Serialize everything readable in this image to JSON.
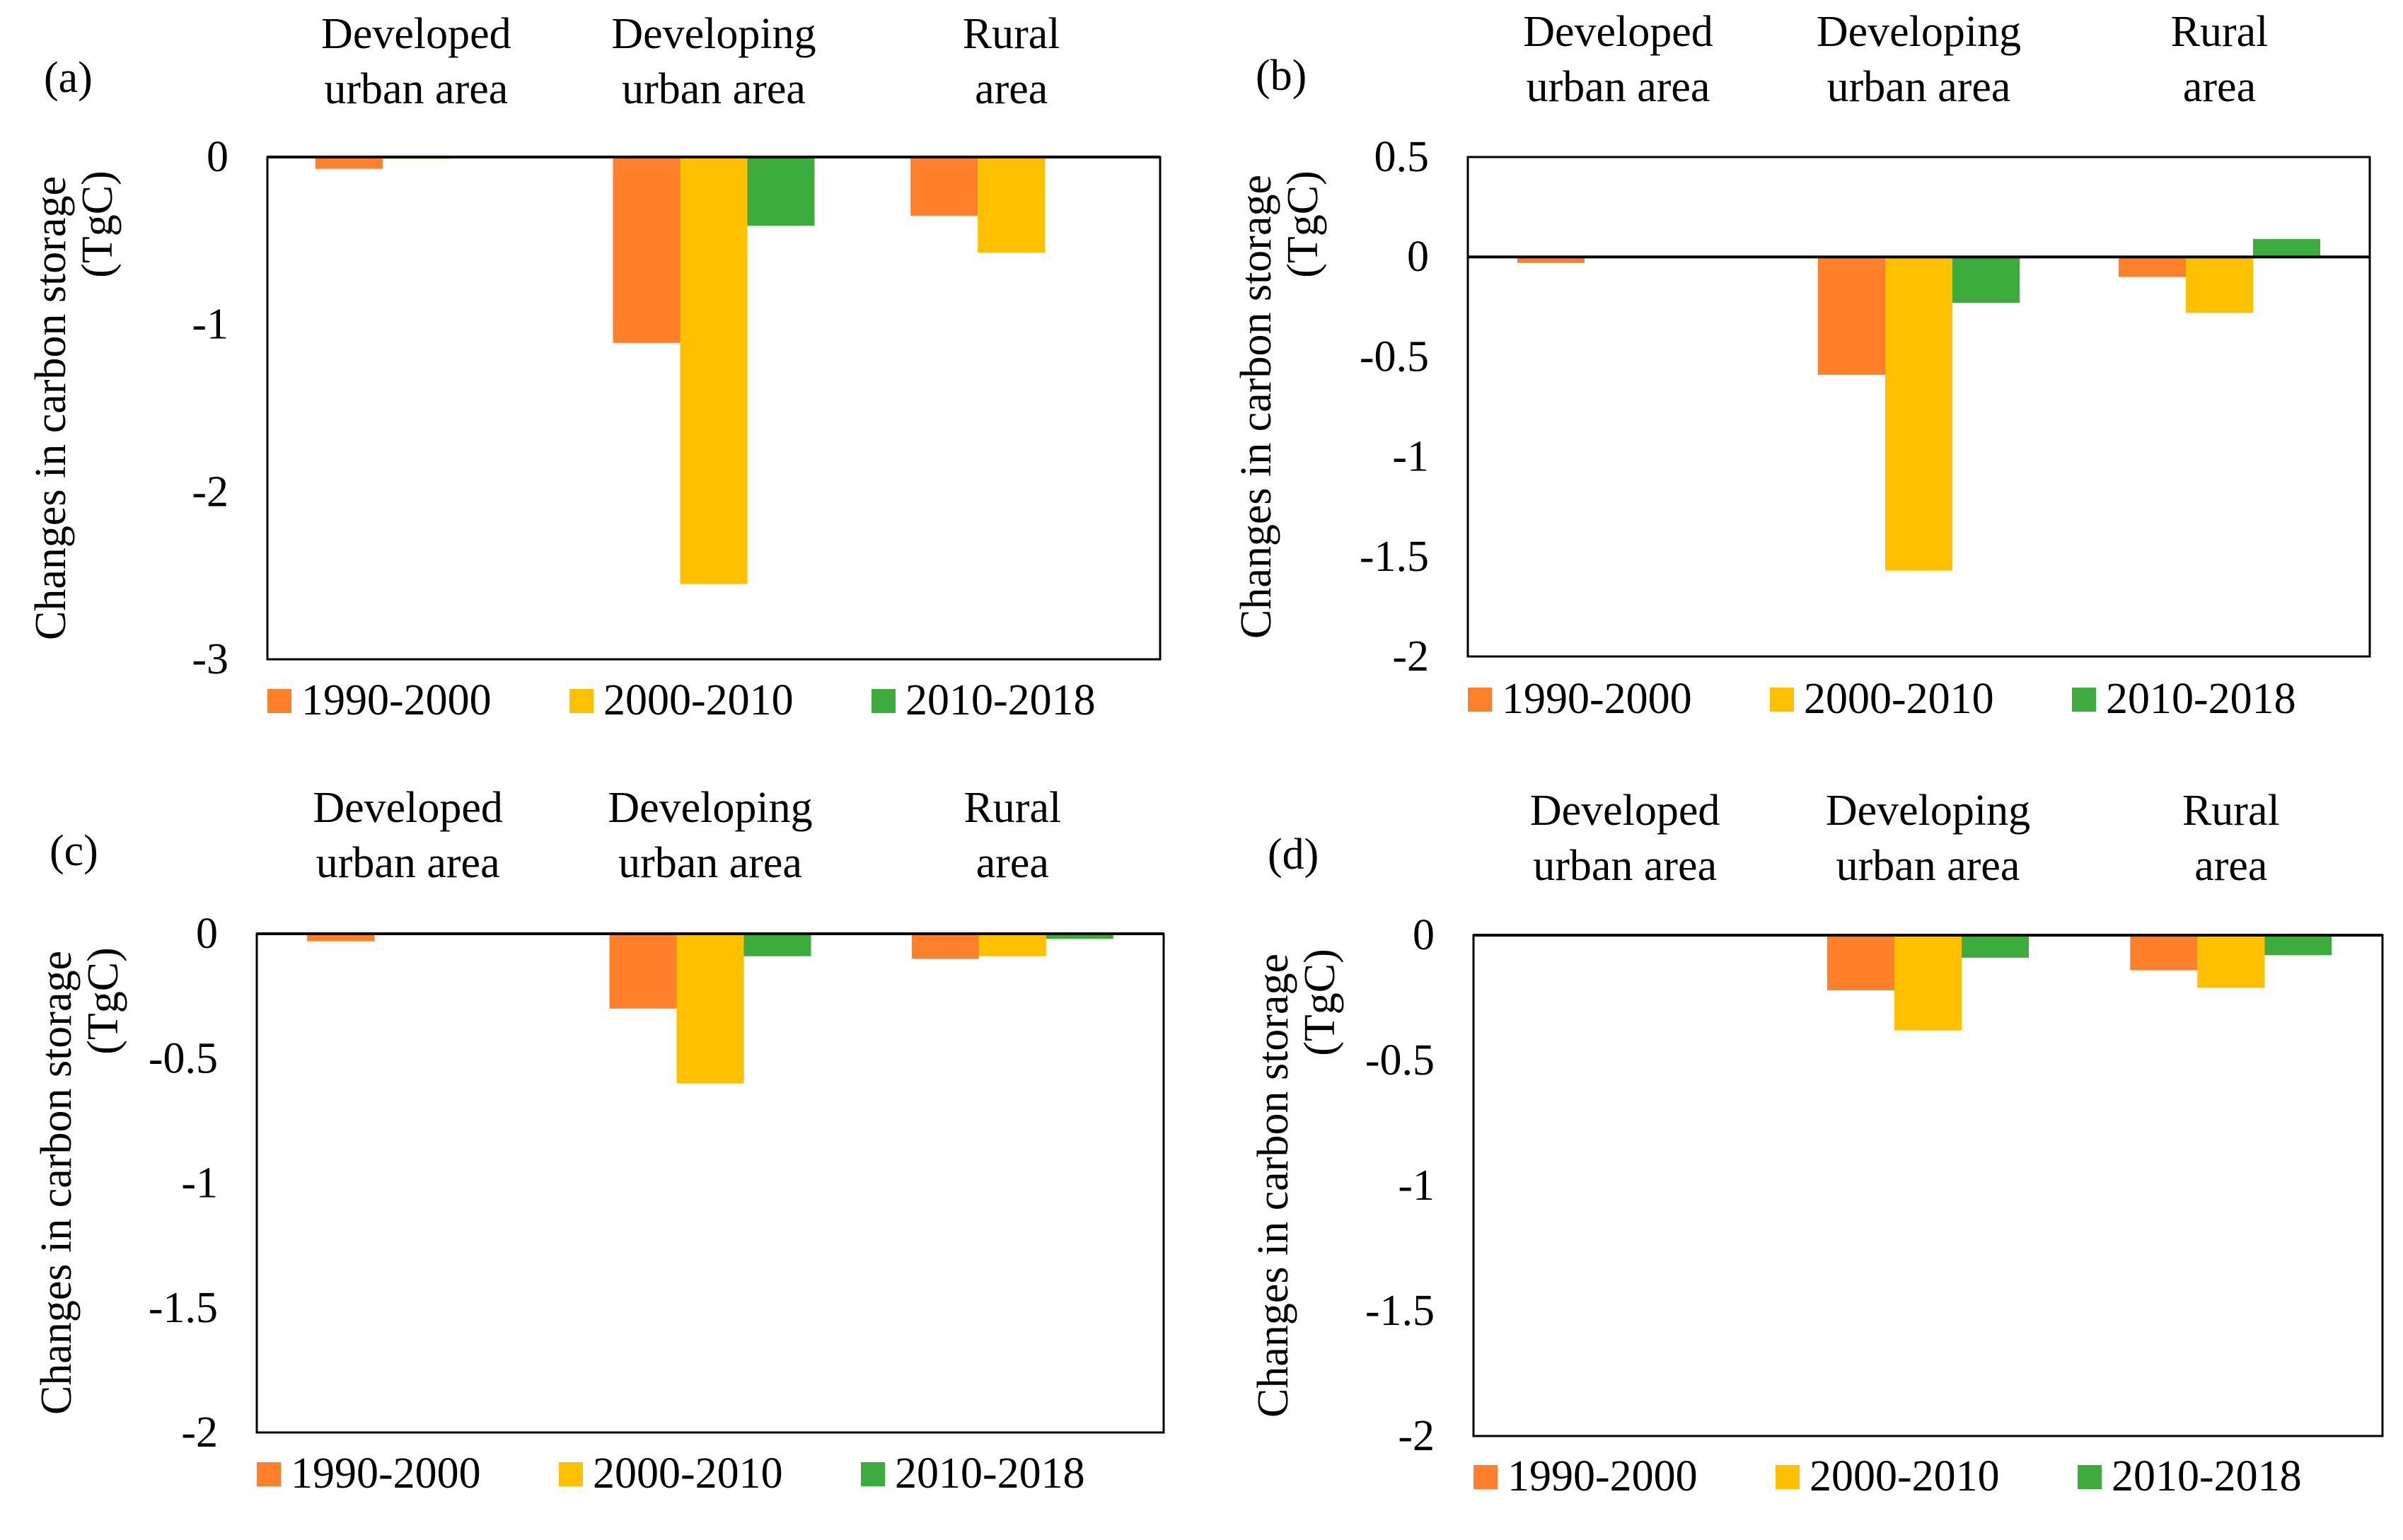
{
  "colors": {
    "1990-2000": "#FF7F2A",
    "2000-2010": "#FFC000",
    "2010-2018": "#3CAC3C",
    "axis": "#000000"
  },
  "chart_data": [
    {
      "panel": "(a)",
      "type": "bar",
      "categories": [
        "Developed urban area",
        "Developing urban area",
        "Rural area"
      ],
      "category_lines": [
        [
          "Developed",
          "urban area"
        ],
        [
          "Developing",
          "urban area"
        ],
        [
          "Rural",
          "area"
        ]
      ],
      "series": [
        {
          "name": "1990-2000",
          "values": [
            -0.07,
            -1.11,
            -0.35
          ]
        },
        {
          "name": "2000-2010",
          "values": [
            -0.01,
            -2.55,
            -0.57
          ]
        },
        {
          "name": "2010-2018",
          "values": [
            0.0,
            -0.41,
            0.0
          ]
        }
      ],
      "ylabel": [
        "Changes in carbon storage",
        "(TgC)"
      ],
      "ylim": [
        -3,
        0
      ],
      "yticks": [
        0,
        -1,
        -2,
        -3
      ],
      "ytick_labels": [
        "0",
        "-1",
        "-2",
        "-3"
      ],
      "legend": [
        "1990-2000",
        "2000-2010",
        "2010-2018"
      ],
      "legend_position": "bottom",
      "grid": false
    },
    {
      "panel": "(b)",
      "type": "bar",
      "categories": [
        "Developed urban area",
        "Developing urban area",
        "Rural area"
      ],
      "category_lines": [
        [
          "Developed",
          "urban area"
        ],
        [
          "Developing",
          "urban area"
        ],
        [
          "Rural",
          "area"
        ]
      ],
      "series": [
        {
          "name": "1990-2000",
          "values": [
            -0.03,
            -0.59,
            -0.1
          ]
        },
        {
          "name": "2000-2010",
          "values": [
            0.0,
            -1.57,
            -0.28
          ]
        },
        {
          "name": "2010-2018",
          "values": [
            0.0,
            -0.23,
            0.09
          ]
        }
      ],
      "ylabel": [
        "Changes in carbon storage",
        "(TgC)"
      ],
      "ylim": [
        -2,
        0.5
      ],
      "yticks": [
        0.5,
        0,
        -0.5,
        -1,
        -1.5,
        -2
      ],
      "ytick_labels": [
        "0.5",
        "0",
        "-0.5",
        "-1",
        "-1.5",
        "-2"
      ],
      "legend": [
        "1990-2000",
        "2000-2010",
        "2010-2018"
      ],
      "legend_position": "bottom",
      "grid": false
    },
    {
      "panel": "(c)",
      "type": "bar",
      "categories": [
        "Developed urban area",
        "Developing urban area",
        "Rural area"
      ],
      "category_lines": [
        [
          "Developed",
          "urban area"
        ],
        [
          "Developing",
          "urban area"
        ],
        [
          "Rural",
          "area"
        ]
      ],
      "series": [
        {
          "name": "1990-2000",
          "values": [
            -0.03,
            -0.3,
            -0.1
          ]
        },
        {
          "name": "2000-2010",
          "values": [
            -0.005,
            -0.6,
            -0.09
          ]
        },
        {
          "name": "2010-2018",
          "values": [
            0.0,
            -0.09,
            -0.02
          ]
        }
      ],
      "ylabel": [
        "Changes in carbon storage",
        "(TgC)"
      ],
      "ylim": [
        -2,
        0
      ],
      "yticks": [
        0,
        -0.5,
        -1,
        -1.5,
        -2
      ],
      "ytick_labels": [
        "0",
        "-0.5",
        "-1",
        "-1.5",
        "-2"
      ],
      "legend": [
        "1990-2000",
        "2000-2010",
        "2010-2018"
      ],
      "legend_position": "bottom",
      "grid": false
    },
    {
      "panel": "(d)",
      "type": "bar",
      "categories": [
        "Developed urban area",
        "Developing urban area",
        "Rural area"
      ],
      "category_lines": [
        [
          "Developed",
          "urban area"
        ],
        [
          "Developing",
          "urban area"
        ],
        [
          "Rural",
          "area"
        ]
      ],
      "series": [
        {
          "name": "1990-2000",
          "values": [
            0.0,
            -0.22,
            -0.14
          ]
        },
        {
          "name": "2000-2010",
          "values": [
            0.0,
            -0.38,
            -0.21
          ]
        },
        {
          "name": "2010-2018",
          "values": [
            0.0,
            -0.09,
            -0.08
          ]
        }
      ],
      "ylabel": [
        "Changes in carbon storage",
        "(TgC)"
      ],
      "ylim": [
        -2,
        0
      ],
      "yticks": [
        0,
        -0.5,
        -1,
        -1.5,
        -2
      ],
      "ytick_labels": [
        "0",
        "-0.5",
        "-1",
        "-1.5",
        "-2"
      ],
      "legend": [
        "1990-2000",
        "2000-2010",
        "2010-2018"
      ],
      "legend_position": "bottom",
      "grid": false
    }
  ]
}
